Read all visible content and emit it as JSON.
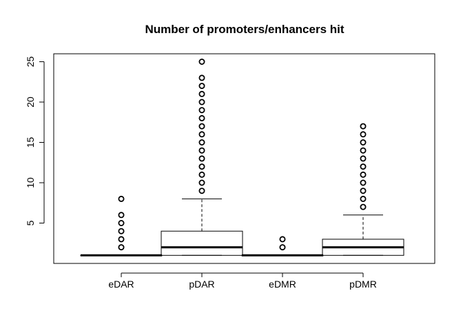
{
  "chart_data": {
    "type": "boxplot",
    "title": "Number of promoters/enhancers hit",
    "xlabel": "",
    "ylabel": "",
    "ylim": [
      0,
      26
    ],
    "yticks": [
      "5",
      "10",
      "15",
      "20",
      "25"
    ],
    "ytick_values": [
      5,
      10,
      15,
      20,
      25
    ],
    "categories": [
      "eDAR",
      "pDAR",
      "eDMR",
      "pDMR"
    ],
    "boxes": [
      {
        "name": "eDAR",
        "whisker_low": 1,
        "q1": 1,
        "median": 1,
        "q3": 1,
        "whisker_high": 1,
        "outliers": [
          2,
          3,
          4,
          5,
          6,
          8
        ]
      },
      {
        "name": "pDAR",
        "whisker_low": 1,
        "q1": 1,
        "median": 2,
        "q3": 4,
        "whisker_high": 8,
        "outliers": [
          9,
          10,
          11,
          12,
          13,
          14,
          15,
          16,
          17,
          18,
          19,
          20,
          21,
          22,
          23,
          25
        ]
      },
      {
        "name": "eDMR",
        "whisker_low": 1,
        "q1": 1,
        "median": 1,
        "q3": 1,
        "whisker_high": 1,
        "outliers": [
          2,
          3
        ]
      },
      {
        "name": "pDMR",
        "whisker_low": 1,
        "q1": 1,
        "median": 2,
        "q3": 3,
        "whisker_high": 6,
        "outliers": [
          7,
          8,
          9,
          10,
          11,
          12,
          13,
          14,
          15,
          16,
          17
        ]
      }
    ],
    "grid": false,
    "legend": "none",
    "colors": {
      "stroke": "#000000",
      "background": "#ffffff"
    }
  }
}
